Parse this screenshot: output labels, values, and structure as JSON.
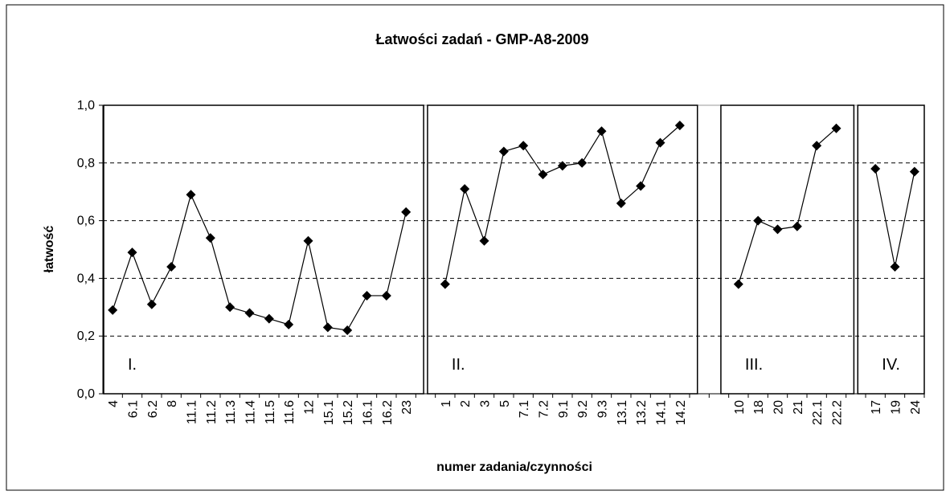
{
  "chart_data": {
    "type": "line",
    "title": "Łatwości zadań - GMP-A8-2009",
    "x_label": "numer zadania/czynności",
    "y_label": "łatwość",
    "categories": [
      "4",
      "6.1",
      "6.2",
      "8",
      "11.1",
      "11.2",
      "11.3",
      "11.4",
      "11.5",
      "11.6",
      "12",
      "15.1",
      "15.2",
      "16.1",
      "16.2",
      "23",
      null,
      "1",
      "2",
      "3",
      "5",
      "7.1",
      "7.2",
      "9.1",
      "9.2",
      "9.3",
      "13.1",
      "13.2",
      "14.1",
      "14.2",
      null,
      null,
      "10",
      "18",
      "20",
      "21",
      "22.1",
      "22.2",
      null,
      "17",
      "19",
      "24"
    ],
    "series": [
      {
        "name": "łatwość",
        "color": "#000000",
        "values": [
          0.29,
          0.49,
          0.31,
          0.44,
          0.69,
          0.54,
          0.3,
          0.28,
          0.26,
          0.24,
          0.53,
          0.23,
          0.22,
          0.34,
          0.34,
          0.63,
          null,
          0.38,
          0.71,
          0.53,
          0.84,
          0.86,
          0.76,
          0.79,
          0.8,
          0.91,
          0.66,
          0.72,
          0.87,
          0.93,
          null,
          null,
          0.38,
          0.6,
          0.57,
          0.58,
          0.86,
          0.92,
          null,
          0.78,
          0.44,
          0.77
        ]
      }
    ],
    "annotations": [
      "I.",
      "II.",
      "III.",
      "IV."
    ],
    "ylim": [
      0,
      1
    ],
    "yticks": [
      {
        "value": 0,
        "label": "0,0"
      },
      {
        "value": 0.2,
        "label": "0,2"
      },
      {
        "value": 0.4,
        "label": "0,4"
      },
      {
        "value": 0.6,
        "label": "0,6"
      },
      {
        "value": 0.8,
        "label": "0,8"
      },
      {
        "value": 1,
        "label": "1,0"
      }
    ],
    "grid": true
  }
}
